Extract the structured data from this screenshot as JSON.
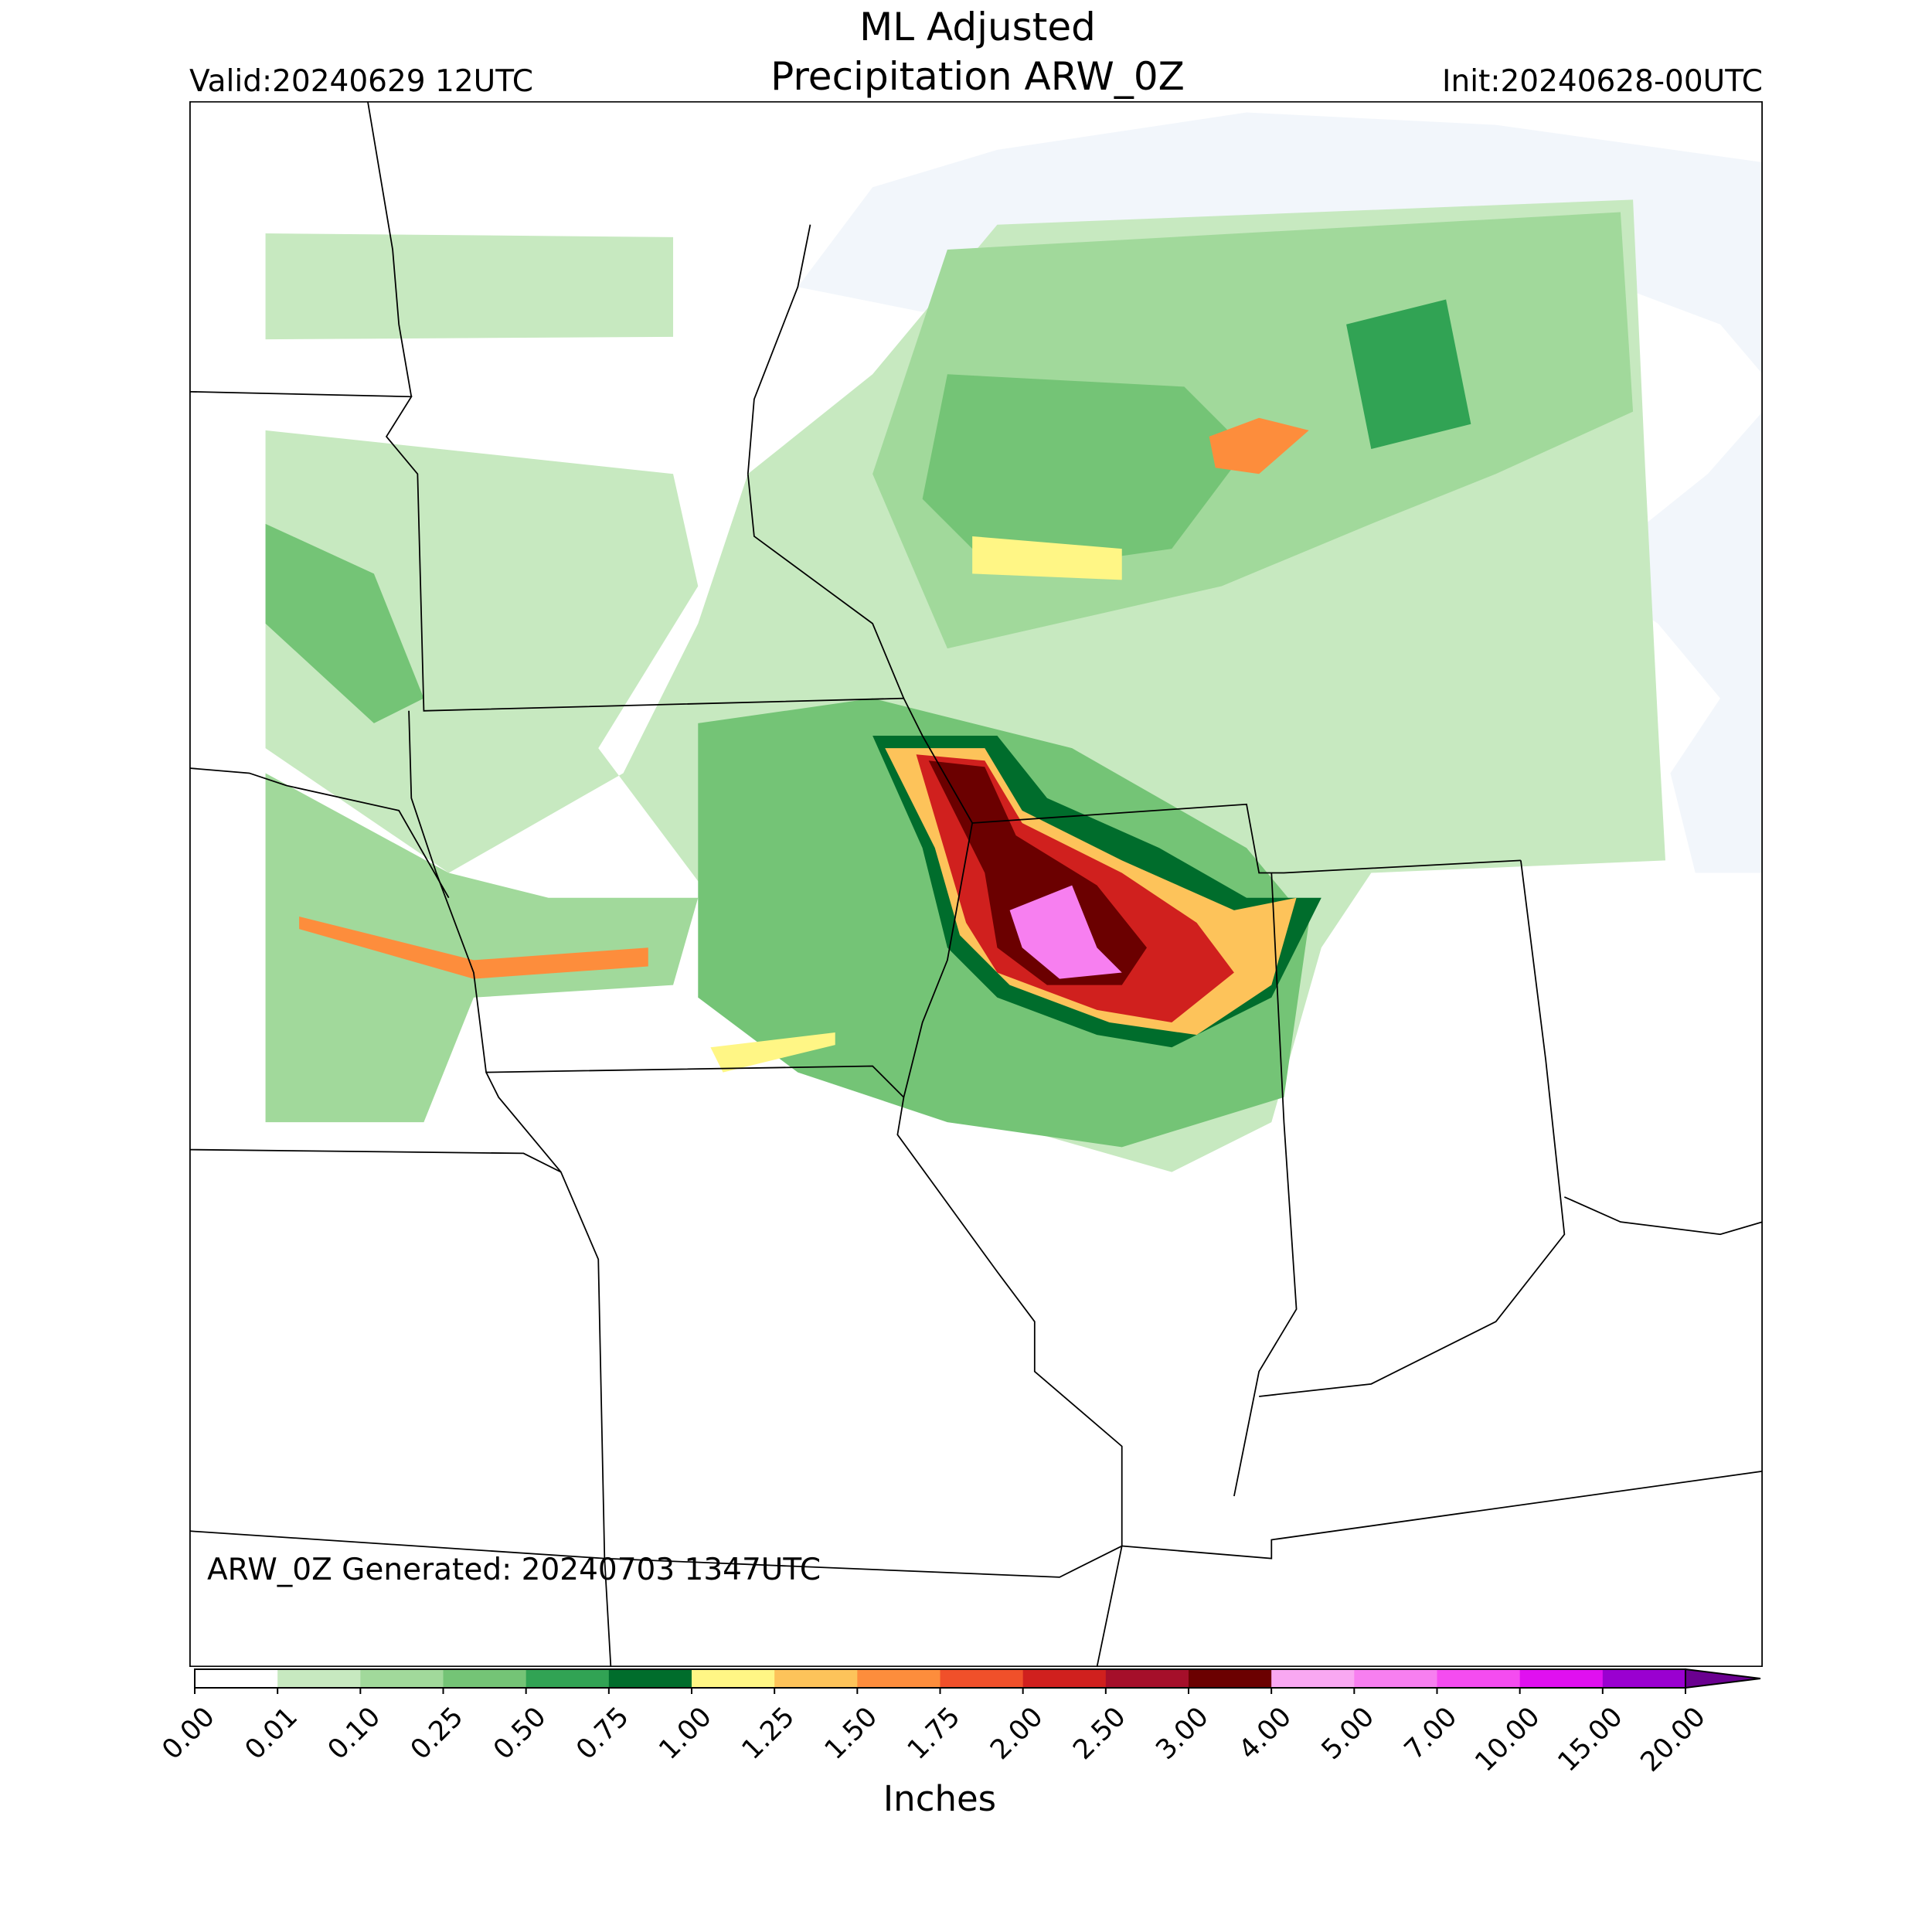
{
  "header": {
    "title_line1": "ML Adjusted",
    "title_line2": "Precipitation ARW_0Z",
    "valid": "Valid:20240629 12UTC",
    "init": "Init:20240628-00UTC"
  },
  "map": {
    "generated": "ARW_0Z Generated: 20240703 1347UTC"
  },
  "colorbar": {
    "ticks": [
      "0.00",
      "0.01",
      "0.10",
      "0.25",
      "0.50",
      "0.75",
      "1.00",
      "1.25",
      "1.50",
      "1.75",
      "2.00",
      "2.50",
      "3.00",
      "4.00",
      "5.00",
      "7.00",
      "10.00",
      "15.00",
      "20.00"
    ],
    "colors": [
      "#ffffff",
      "#c7e9c0",
      "#a1d99b",
      "#74c476",
      "#31a354",
      "#006d2c",
      "#fff685",
      "#fdc35a",
      "#fd8d3c",
      "#f0502a",
      "#d0201e",
      "#a50f2a",
      "#6b0000",
      "#f9a8f2",
      "#f77ff0",
      "#f44cf0",
      "#e010f0",
      "#9a00d0"
    ],
    "extend_color": "#6a0090",
    "label": "Inches"
  }
}
